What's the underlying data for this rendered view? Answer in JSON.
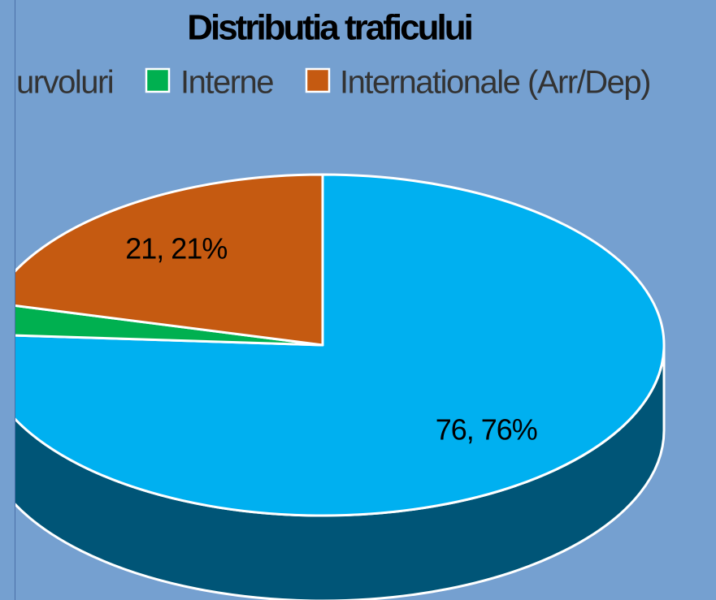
{
  "chart_data": {
    "type": "pie3d",
    "title": "Distributia traficului",
    "categories": [
      "urvoluri",
      "Interne",
      "Internationale (Arr/Dep)"
    ],
    "values": [
      76,
      3,
      21
    ],
    "value_labels": [
      "76, 76%",
      null,
      "21, 21%"
    ],
    "colors": [
      "#00b0f0",
      "#00b050",
      "#c55a11"
    ],
    "side_color": "#005577"
  }
}
